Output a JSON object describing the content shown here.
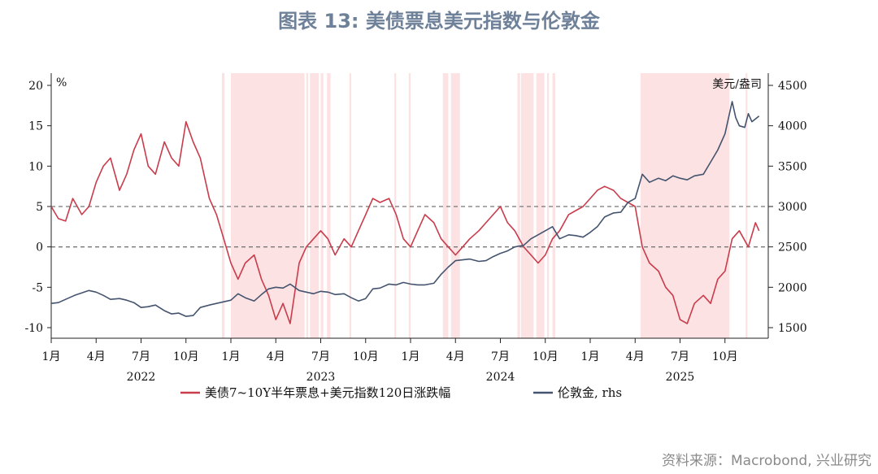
{
  "title": "图表 13: 美债票息美元指数与伦敦金",
  "source": "资料来源：Macrobond, 兴业研究",
  "chart_data": {
    "type": "line",
    "title": "图表 13: 美债票息美元指数与伦敦金",
    "ylabel_left": "%",
    "ylabel_right": "美元/盎司",
    "ylim_left": [
      -10,
      20
    ],
    "ylim_right": [
      1500,
      4500
    ],
    "yticks_left": [
      "20",
      "15",
      "10",
      "5",
      "0",
      "-5",
      "-10"
    ],
    "yticks_right": [
      "4500",
      "4000",
      "3500",
      "3000",
      "2500",
      "2000",
      "1500"
    ],
    "xlim": [
      2022.0,
      2025.95
    ],
    "x_month_ticks": [
      {
        "t": 2022.0,
        "label": "1月"
      },
      {
        "t": 2022.25,
        "label": "4月"
      },
      {
        "t": 2022.5,
        "label": "7月"
      },
      {
        "t": 2022.75,
        "label": "10月"
      },
      {
        "t": 2023.0,
        "label": "1月"
      },
      {
        "t": 2023.25,
        "label": "4月"
      },
      {
        "t": 2023.5,
        "label": "7月"
      },
      {
        "t": 2023.75,
        "label": "10月"
      },
      {
        "t": 2024.0,
        "label": "1月"
      },
      {
        "t": 2024.25,
        "label": "4月"
      },
      {
        "t": 2024.5,
        "label": "7月"
      },
      {
        "t": 2024.75,
        "label": "10月"
      },
      {
        "t": 2025.0,
        "label": "1月"
      },
      {
        "t": 2025.25,
        "label": "4月"
      },
      {
        "t": 2025.5,
        "label": "7月"
      },
      {
        "t": 2025.75,
        "label": "10月"
      }
    ],
    "x_year_labels": [
      {
        "t": 2022.5,
        "label": "2022"
      },
      {
        "t": 2023.5,
        "label": "2023"
      },
      {
        "t": 2024.5,
        "label": "2024"
      },
      {
        "t": 2025.5,
        "label": "2025"
      }
    ],
    "reference_lines_left": [
      5,
      0
    ],
    "shaded_periods": [
      [
        2022.95,
        2022.965
      ],
      [
        2023.0,
        2023.41
      ],
      [
        2023.42,
        2023.43
      ],
      [
        2023.44,
        2023.49
      ],
      [
        2023.5,
        2023.515
      ],
      [
        2023.535,
        2023.555
      ],
      [
        2023.66,
        2023.67
      ],
      [
        2023.91,
        2023.92
      ],
      [
        2023.99,
        2024.0
      ],
      [
        2024.18,
        2024.21
      ],
      [
        2024.225,
        2024.275
      ],
      [
        2024.595,
        2024.61
      ],
      [
        2024.615,
        2024.685
      ],
      [
        2024.7,
        2024.745
      ],
      [
        2024.76,
        2024.77
      ],
      [
        2024.79,
        2024.805
      ],
      [
        2025.28,
        2025.775
      ],
      [
        2025.865,
        2025.875
      ]
    ],
    "series": [
      {
        "name": "美债7~10Y半年票息+美元指数120日涨跌幅",
        "axis": "left",
        "color": "#c83c4b",
        "points": [
          [
            2022.0,
            5
          ],
          [
            2022.04,
            3.5
          ],
          [
            2022.08,
            3.2
          ],
          [
            2022.12,
            6
          ],
          [
            2022.17,
            4
          ],
          [
            2022.21,
            5
          ],
          [
            2022.25,
            8
          ],
          [
            2022.29,
            10
          ],
          [
            2022.33,
            11
          ],
          [
            2022.38,
            7
          ],
          [
            2022.42,
            9
          ],
          [
            2022.46,
            12
          ],
          [
            2022.5,
            14
          ],
          [
            2022.54,
            10
          ],
          [
            2022.58,
            9
          ],
          [
            2022.63,
            13
          ],
          [
            2022.67,
            11
          ],
          [
            2022.71,
            10
          ],
          [
            2022.75,
            15.5
          ],
          [
            2022.79,
            13
          ],
          [
            2022.83,
            11
          ],
          [
            2022.88,
            6
          ],
          [
            2022.92,
            4
          ],
          [
            2022.96,
            1
          ],
          [
            2023.0,
            -2
          ],
          [
            2023.04,
            -4
          ],
          [
            2023.08,
            -2
          ],
          [
            2023.13,
            -1
          ],
          [
            2023.17,
            -4
          ],
          [
            2023.21,
            -6
          ],
          [
            2023.25,
            -9
          ],
          [
            2023.29,
            -7
          ],
          [
            2023.33,
            -9.5
          ],
          [
            2023.38,
            -2
          ],
          [
            2023.42,
            0
          ],
          [
            2023.46,
            1
          ],
          [
            2023.5,
            2
          ],
          [
            2023.54,
            1
          ],
          [
            2023.58,
            -1
          ],
          [
            2023.63,
            1
          ],
          [
            2023.67,
            0
          ],
          [
            2023.71,
            2
          ],
          [
            2023.75,
            4
          ],
          [
            2023.79,
            6
          ],
          [
            2023.83,
            5.5
          ],
          [
            2023.88,
            6
          ],
          [
            2023.92,
            4
          ],
          [
            2023.96,
            1
          ],
          [
            2024.0,
            0
          ],
          [
            2024.04,
            2
          ],
          [
            2024.08,
            4
          ],
          [
            2024.13,
            3
          ],
          [
            2024.17,
            1
          ],
          [
            2024.21,
            0
          ],
          [
            2024.25,
            -1
          ],
          [
            2024.29,
            0
          ],
          [
            2024.33,
            1
          ],
          [
            2024.38,
            2
          ],
          [
            2024.42,
            3
          ],
          [
            2024.46,
            4
          ],
          [
            2024.5,
            5
          ],
          [
            2024.54,
            3
          ],
          [
            2024.58,
            2
          ],
          [
            2024.63,
            0
          ],
          [
            2024.67,
            -1
          ],
          [
            2024.71,
            -2
          ],
          [
            2024.75,
            -1
          ],
          [
            2024.79,
            1
          ],
          [
            2024.83,
            2
          ],
          [
            2024.88,
            4
          ],
          [
            2024.92,
            4.5
          ],
          [
            2024.96,
            5
          ],
          [
            2025.0,
            6
          ],
          [
            2025.04,
            7
          ],
          [
            2025.08,
            7.5
          ],
          [
            2025.13,
            7
          ],
          [
            2025.17,
            6
          ],
          [
            2025.21,
            5.5
          ],
          [
            2025.25,
            5
          ],
          [
            2025.29,
            0
          ],
          [
            2025.33,
            -2
          ],
          [
            2025.38,
            -3
          ],
          [
            2025.42,
            -5
          ],
          [
            2025.46,
            -6
          ],
          [
            2025.5,
            -9
          ],
          [
            2025.54,
            -9.5
          ],
          [
            2025.58,
            -7
          ],
          [
            2025.63,
            -6
          ],
          [
            2025.67,
            -7
          ],
          [
            2025.71,
            -4
          ],
          [
            2025.75,
            -3
          ],
          [
            2025.79,
            1
          ],
          [
            2025.83,
            2
          ],
          [
            2025.88,
            0
          ],
          [
            2025.92,
            3
          ],
          [
            2025.94,
            2
          ]
        ]
      },
      {
        "name": "伦敦金, rhs",
        "axis": "right",
        "color": "#44546e",
        "points": [
          [
            2022.0,
            1800
          ],
          [
            2022.04,
            1810
          ],
          [
            2022.08,
            1850
          ],
          [
            2022.13,
            1900
          ],
          [
            2022.17,
            1930
          ],
          [
            2022.21,
            1960
          ],
          [
            2022.25,
            1940
          ],
          [
            2022.29,
            1900
          ],
          [
            2022.33,
            1850
          ],
          [
            2022.38,
            1860
          ],
          [
            2022.42,
            1840
          ],
          [
            2022.46,
            1810
          ],
          [
            2022.5,
            1750
          ],
          [
            2022.54,
            1760
          ],
          [
            2022.58,
            1780
          ],
          [
            2022.63,
            1710
          ],
          [
            2022.67,
            1670
          ],
          [
            2022.71,
            1680
          ],
          [
            2022.75,
            1640
          ],
          [
            2022.79,
            1650
          ],
          [
            2022.83,
            1750
          ],
          [
            2022.88,
            1780
          ],
          [
            2022.92,
            1800
          ],
          [
            2022.96,
            1820
          ],
          [
            2023.0,
            1840
          ],
          [
            2023.04,
            1920
          ],
          [
            2023.08,
            1870
          ],
          [
            2023.13,
            1830
          ],
          [
            2023.17,
            1910
          ],
          [
            2023.21,
            1980
          ],
          [
            2023.25,
            2000
          ],
          [
            2023.29,
            1990
          ],
          [
            2023.33,
            2040
          ],
          [
            2023.38,
            1960
          ],
          [
            2023.42,
            1940
          ],
          [
            2023.46,
            1920
          ],
          [
            2023.5,
            1950
          ],
          [
            2023.54,
            1940
          ],
          [
            2023.58,
            1910
          ],
          [
            2023.63,
            1920
          ],
          [
            2023.67,
            1870
          ],
          [
            2023.71,
            1830
          ],
          [
            2023.75,
            1860
          ],
          [
            2023.79,
            1980
          ],
          [
            2023.83,
            1990
          ],
          [
            2023.88,
            2040
          ],
          [
            2023.92,
            2030
          ],
          [
            2023.96,
            2060
          ],
          [
            2024.0,
            2040
          ],
          [
            2024.04,
            2030
          ],
          [
            2024.08,
            2030
          ],
          [
            2024.13,
            2050
          ],
          [
            2024.17,
            2160
          ],
          [
            2024.21,
            2250
          ],
          [
            2024.25,
            2330
          ],
          [
            2024.29,
            2340
          ],
          [
            2024.33,
            2350
          ],
          [
            2024.38,
            2320
          ],
          [
            2024.42,
            2330
          ],
          [
            2024.46,
            2380
          ],
          [
            2024.5,
            2420
          ],
          [
            2024.54,
            2450
          ],
          [
            2024.58,
            2500
          ],
          [
            2024.63,
            2520
          ],
          [
            2024.67,
            2600
          ],
          [
            2024.71,
            2650
          ],
          [
            2024.75,
            2700
          ],
          [
            2024.79,
            2750
          ],
          [
            2024.83,
            2600
          ],
          [
            2024.88,
            2650
          ],
          [
            2024.92,
            2640
          ],
          [
            2024.96,
            2620
          ],
          [
            2025.0,
            2680
          ],
          [
            2025.04,
            2750
          ],
          [
            2025.08,
            2870
          ],
          [
            2025.13,
            2920
          ],
          [
            2025.17,
            2930
          ],
          [
            2025.21,
            3050
          ],
          [
            2025.25,
            3100
          ],
          [
            2025.29,
            3400
          ],
          [
            2025.33,
            3300
          ],
          [
            2025.38,
            3350
          ],
          [
            2025.42,
            3320
          ],
          [
            2025.46,
            3380
          ],
          [
            2025.5,
            3350
          ],
          [
            2025.54,
            3330
          ],
          [
            2025.58,
            3380
          ],
          [
            2025.63,
            3400
          ],
          [
            2025.67,
            3550
          ],
          [
            2025.71,
            3700
          ],
          [
            2025.75,
            3900
          ],
          [
            2025.79,
            4300
          ],
          [
            2025.81,
            4100
          ],
          [
            2025.83,
            4000
          ],
          [
            2025.86,
            3980
          ],
          [
            2025.88,
            4150
          ],
          [
            2025.9,
            4050
          ],
          [
            2025.94,
            4120
          ]
        ]
      }
    ],
    "legend": {
      "placement": "bottom",
      "items": [
        "美债7~10Y半年票息+美元指数120日涨跌幅",
        "伦敦金, rhs"
      ]
    }
  }
}
